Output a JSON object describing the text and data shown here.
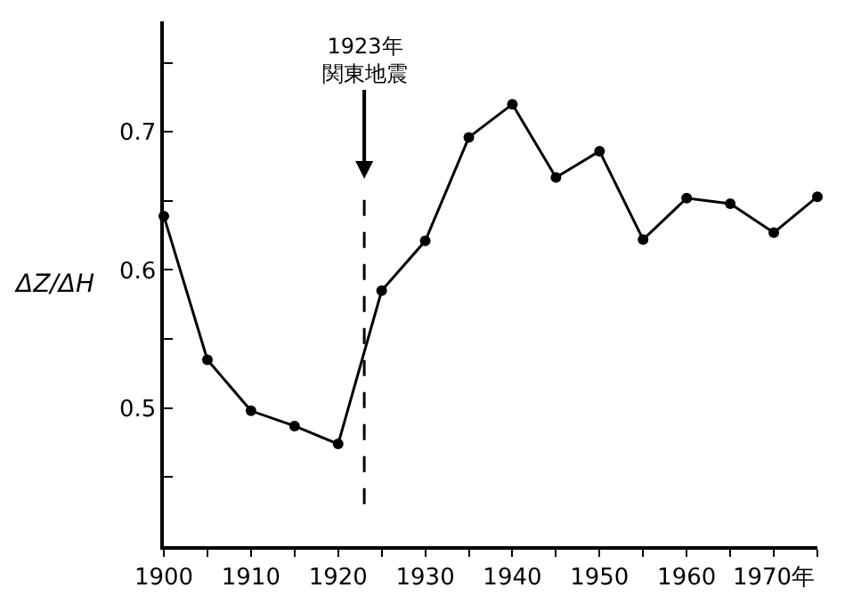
{
  "chart_data": {
    "type": "line",
    "ylabel": "ΔZ/ΔH",
    "x": [
      1900,
      1905,
      1910,
      1915,
      1920,
      1925,
      1930,
      1935,
      1940,
      1945,
      1950,
      1955,
      1960,
      1965,
      1970,
      1975
    ],
    "series": [
      {
        "color": "#000000",
        "values": [
          0.639,
          0.535,
          0.498,
          0.487,
          0.474,
          0.585,
          0.621,
          0.696,
          0.72,
          0.667,
          0.686,
          0.622,
          0.652,
          0.648,
          0.627,
          0.653
        ]
      }
    ],
    "xlim": [
      1900,
      1975
    ],
    "xticks": [
      1900,
      {
        "value": 1905,
        "label": null
      },
      1910,
      {
        "value": 1915,
        "label": null
      },
      1920,
      {
        "value": 1925,
        "label": null
      },
      1930,
      {
        "value": 1935,
        "label": null
      },
      1940,
      {
        "value": 1945,
        "label": null
      },
      1950,
      {
        "value": 1955,
        "label": null
      },
      1960,
      {
        "value": 1965,
        "label": null
      },
      {
        "value": 1970,
        "label": "1970年"
      },
      {
        "value": 1975,
        "label": null
      }
    ],
    "ylim": [
      0.4,
      0.78
    ],
    "yticks": [
      {
        "value": 0.45,
        "label": null
      },
      0.5,
      {
        "value": 0.55,
        "label": null
      },
      0.6,
      {
        "value": 0.65,
        "label": null
      },
      0.7,
      {
        "value": 0.75,
        "label": null
      }
    ],
    "ref_lines": [
      {
        "axis": "x",
        "value": 1923,
        "label": "1923年関東地震",
        "line_style": "dashed",
        "color": "#000000"
      }
    ],
    "marker": "circle",
    "line_style": "solid",
    "legend": false
  }
}
